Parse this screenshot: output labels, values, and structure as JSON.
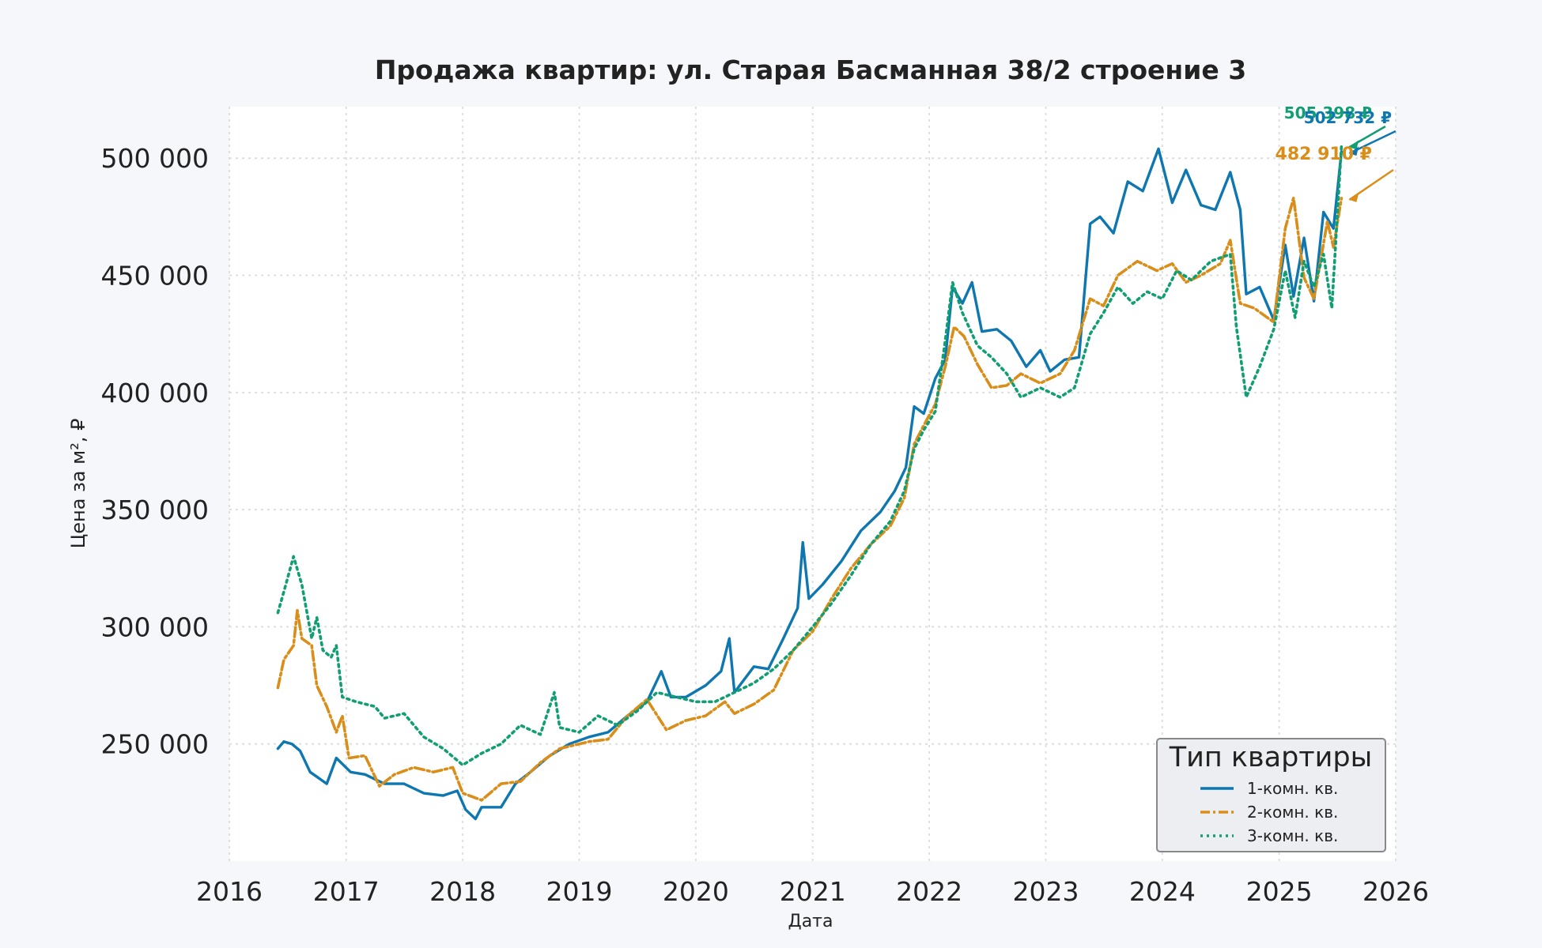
{
  "chart_data": {
    "type": "line",
    "title": "Продажа квартир: ул. Старая Басманная 38/2 строение 3",
    "xlabel": "Дата",
    "ylabel": "Цена за м², ₽",
    "xlim": [
      "2016-01-01",
      "2026-01-01"
    ],
    "ylim": [
      200000,
      522000
    ],
    "x_ticks": [
      "2016",
      "2017",
      "2018",
      "2019",
      "2020",
      "2021",
      "2022",
      "2023",
      "2024",
      "2025",
      "2026"
    ],
    "y_ticks": [
      250000,
      300000,
      350000,
      400000,
      450000,
      500000
    ],
    "y_tick_labels": [
      "250 000",
      "300 000",
      "350 000",
      "400 000",
      "450 000",
      "500 000"
    ],
    "grid": true,
    "legend": {
      "title": "Тип квартиры",
      "placement": "lower-right"
    },
    "series": [
      {
        "name": "1-комн. кв.",
        "color": "#0f77b0",
        "style": "solid",
        "points": [
          [
            "2016-06-01",
            248000
          ],
          [
            "2016-06-20",
            251000
          ],
          [
            "2016-07-15",
            250000
          ],
          [
            "2016-08-10",
            247000
          ],
          [
            "2016-09-10",
            238000
          ],
          [
            "2016-10-01",
            236000
          ],
          [
            "2016-11-01",
            233000
          ],
          [
            "2016-12-01",
            244000
          ],
          [
            "2017-01-15",
            238000
          ],
          [
            "2017-03-01",
            237000
          ],
          [
            "2017-05-01",
            233000
          ],
          [
            "2017-07-01",
            233000
          ],
          [
            "2017-09-01",
            229000
          ],
          [
            "2017-11-01",
            228000
          ],
          [
            "2017-12-15",
            230000
          ],
          [
            "2018-01-10",
            222000
          ],
          [
            "2018-02-10",
            218000
          ],
          [
            "2018-03-01",
            223000
          ],
          [
            "2018-05-01",
            223000
          ],
          [
            "2018-06-15",
            233000
          ],
          [
            "2018-08-01",
            238000
          ],
          [
            "2018-10-01",
            245000
          ],
          [
            "2018-12-01",
            250000
          ],
          [
            "2019-02-01",
            253000
          ],
          [
            "2019-04-01",
            255000
          ],
          [
            "2019-06-01",
            262000
          ],
          [
            "2019-08-01",
            268000
          ],
          [
            "2019-09-15",
            281000
          ],
          [
            "2019-10-15",
            270000
          ],
          [
            "2019-12-01",
            270000
          ],
          [
            "2020-02-01",
            275000
          ],
          [
            "2020-03-20",
            281000
          ],
          [
            "2020-04-15",
            295000
          ],
          [
            "2020-05-01",
            272000
          ],
          [
            "2020-07-01",
            283000
          ],
          [
            "2020-08-15",
            282000
          ],
          [
            "2020-10-01",
            295000
          ],
          [
            "2020-11-15",
            308000
          ],
          [
            "2020-12-01",
            336000
          ],
          [
            "2020-12-20",
            312000
          ],
          [
            "2021-02-01",
            318000
          ],
          [
            "2021-04-01",
            328000
          ],
          [
            "2021-06-01",
            341000
          ],
          [
            "2021-08-01",
            349000
          ],
          [
            "2021-09-15",
            358000
          ],
          [
            "2021-10-20",
            368000
          ],
          [
            "2021-11-15",
            394000
          ],
          [
            "2021-12-15",
            391000
          ],
          [
            "2022-01-20",
            406000
          ],
          [
            "2022-02-20",
            414000
          ],
          [
            "2022-03-15",
            445000
          ],
          [
            "2022-04-15",
            438000
          ],
          [
            "2022-05-15",
            447000
          ],
          [
            "2022-06-15",
            426000
          ],
          [
            "2022-08-01",
            427000
          ],
          [
            "2022-09-15",
            422000
          ],
          [
            "2022-11-01",
            411000
          ],
          [
            "2022-12-15",
            418000
          ],
          [
            "2023-01-15",
            409000
          ],
          [
            "2023-03-01",
            414000
          ],
          [
            "2023-04-15",
            415000
          ],
          [
            "2023-05-20",
            472000
          ],
          [
            "2023-06-20",
            475000
          ],
          [
            "2023-08-01",
            468000
          ],
          [
            "2023-09-15",
            490000
          ],
          [
            "2023-11-01",
            486000
          ],
          [
            "2023-12-20",
            504000
          ],
          [
            "2024-02-01",
            481000
          ],
          [
            "2024-03-15",
            495000
          ],
          [
            "2024-05-01",
            480000
          ],
          [
            "2024-06-15",
            478000
          ],
          [
            "2024-08-01",
            494000
          ],
          [
            "2024-09-01",
            478000
          ],
          [
            "2024-09-20",
            442000
          ],
          [
            "2024-11-01",
            445000
          ],
          [
            "2024-12-15",
            431000
          ],
          [
            "2025-01-20",
            463000
          ],
          [
            "2025-02-15",
            441000
          ],
          [
            "2025-03-20",
            466000
          ],
          [
            "2025-04-20",
            439000
          ],
          [
            "2025-05-20",
            477000
          ],
          [
            "2025-06-20",
            470000
          ],
          [
            "2025-07-15",
            502732
          ]
        ]
      },
      {
        "name": "2-комн. кв.",
        "color": "#d98e1a",
        "style": "dashdot",
        "points": [
          [
            "2016-06-01",
            274000
          ],
          [
            "2016-06-20",
            286000
          ],
          [
            "2016-07-20",
            292000
          ],
          [
            "2016-08-01",
            307000
          ],
          [
            "2016-08-15",
            295000
          ],
          [
            "2016-09-15",
            292000
          ],
          [
            "2016-10-01",
            275000
          ],
          [
            "2016-11-01",
            266000
          ],
          [
            "2016-12-01",
            255000
          ],
          [
            "2016-12-20",
            262000
          ],
          [
            "2017-01-10",
            244000
          ],
          [
            "2017-03-01",
            245000
          ],
          [
            "2017-04-15",
            232000
          ],
          [
            "2017-06-01",
            237000
          ],
          [
            "2017-08-01",
            240000
          ],
          [
            "2017-10-01",
            238000
          ],
          [
            "2017-12-01",
            240000
          ],
          [
            "2018-01-01",
            229000
          ],
          [
            "2018-03-01",
            226000
          ],
          [
            "2018-05-01",
            233000
          ],
          [
            "2018-07-01",
            234000
          ],
          [
            "2018-09-01",
            242000
          ],
          [
            "2018-11-01",
            248000
          ],
          [
            "2019-02-01",
            251000
          ],
          [
            "2019-04-01",
            252000
          ],
          [
            "2019-06-01",
            262000
          ],
          [
            "2019-08-01",
            269000
          ],
          [
            "2019-10-01",
            256000
          ],
          [
            "2019-12-01",
            260000
          ],
          [
            "2020-02-01",
            262000
          ],
          [
            "2020-04-01",
            268000
          ],
          [
            "2020-05-01",
            263000
          ],
          [
            "2020-07-01",
            267000
          ],
          [
            "2020-09-01",
            273000
          ],
          [
            "2020-11-01",
            290000
          ],
          [
            "2021-01-01",
            298000
          ],
          [
            "2021-03-01",
            312000
          ],
          [
            "2021-05-01",
            325000
          ],
          [
            "2021-07-01",
            335000
          ],
          [
            "2021-09-01",
            343000
          ],
          [
            "2021-10-15",
            355000
          ],
          [
            "2021-11-15",
            378000
          ],
          [
            "2021-12-15",
            386000
          ],
          [
            "2022-01-20",
            395000
          ],
          [
            "2022-02-20",
            411000
          ],
          [
            "2022-03-20",
            428000
          ],
          [
            "2022-04-20",
            424000
          ],
          [
            "2022-06-01",
            412000
          ],
          [
            "2022-07-15",
            402000
          ],
          [
            "2022-09-01",
            403000
          ],
          [
            "2022-10-15",
            408000
          ],
          [
            "2022-12-15",
            404000
          ],
          [
            "2023-02-15",
            408000
          ],
          [
            "2023-04-01",
            418000
          ],
          [
            "2023-05-20",
            440000
          ],
          [
            "2023-07-01",
            437000
          ],
          [
            "2023-08-15",
            450000
          ],
          [
            "2023-10-15",
            456000
          ],
          [
            "2023-12-15",
            452000
          ],
          [
            "2024-02-01",
            455000
          ],
          [
            "2024-03-15",
            447000
          ],
          [
            "2024-05-01",
            450000
          ],
          [
            "2024-07-01",
            455000
          ],
          [
            "2024-08-01",
            465000
          ],
          [
            "2024-09-01",
            438000
          ],
          [
            "2024-10-15",
            436000
          ],
          [
            "2024-12-15",
            430000
          ],
          [
            "2025-01-20",
            470000
          ],
          [
            "2025-02-15",
            483000
          ],
          [
            "2025-03-20",
            449000
          ],
          [
            "2025-04-20",
            440000
          ],
          [
            "2025-06-01",
            473000
          ],
          [
            "2025-06-20",
            462000
          ],
          [
            "2025-07-15",
            482910
          ]
        ]
      },
      {
        "name": "3-комн. кв.",
        "color": "#129e73",
        "style": "dotted",
        "points": [
          [
            "2016-06-01",
            306000
          ],
          [
            "2016-06-20",
            315000
          ],
          [
            "2016-07-20",
            330000
          ],
          [
            "2016-08-15",
            318000
          ],
          [
            "2016-09-15",
            295000
          ],
          [
            "2016-10-01",
            304000
          ],
          [
            "2016-10-20",
            290000
          ],
          [
            "2016-11-15",
            287000
          ],
          [
            "2016-12-01",
            292000
          ],
          [
            "2016-12-20",
            270000
          ],
          [
            "2017-02-01",
            268000
          ],
          [
            "2017-04-01",
            266000
          ],
          [
            "2017-05-01",
            261000
          ],
          [
            "2017-07-01",
            263000
          ],
          [
            "2017-09-01",
            253000
          ],
          [
            "2017-11-01",
            248000
          ],
          [
            "2018-01-01",
            241000
          ],
          [
            "2018-03-01",
            246000
          ],
          [
            "2018-05-01",
            250000
          ],
          [
            "2018-07-01",
            258000
          ],
          [
            "2018-09-01",
            254000
          ],
          [
            "2018-10-15",
            272000
          ],
          [
            "2018-11-01",
            257000
          ],
          [
            "2019-01-01",
            255000
          ],
          [
            "2019-03-01",
            262000
          ],
          [
            "2019-05-01",
            258000
          ],
          [
            "2019-07-01",
            264000
          ],
          [
            "2019-09-01",
            272000
          ],
          [
            "2019-11-01",
            270000
          ],
          [
            "2020-01-01",
            268000
          ],
          [
            "2020-03-01",
            268000
          ],
          [
            "2020-05-01",
            272000
          ],
          [
            "2020-07-01",
            276000
          ],
          [
            "2020-09-01",
            282000
          ],
          [
            "2020-11-01",
            290000
          ],
          [
            "2021-01-01",
            300000
          ],
          [
            "2021-03-01",
            310000
          ],
          [
            "2021-05-01",
            322000
          ],
          [
            "2021-07-01",
            335000
          ],
          [
            "2021-09-01",
            345000
          ],
          [
            "2021-10-15",
            358000
          ],
          [
            "2021-11-15",
            376000
          ],
          [
            "2021-12-15",
            384000
          ],
          [
            "2022-01-20",
            392000
          ],
          [
            "2022-02-20",
            422000
          ],
          [
            "2022-03-15",
            447000
          ],
          [
            "2022-04-15",
            434000
          ],
          [
            "2022-06-01",
            420000
          ],
          [
            "2022-07-15",
            415000
          ],
          [
            "2022-09-01",
            408000
          ],
          [
            "2022-10-15",
            398000
          ],
          [
            "2022-12-15",
            402000
          ],
          [
            "2023-02-15",
            398000
          ],
          [
            "2023-04-01",
            402000
          ],
          [
            "2023-05-20",
            425000
          ],
          [
            "2023-07-01",
            434000
          ],
          [
            "2023-08-15",
            445000
          ],
          [
            "2023-10-01",
            438000
          ],
          [
            "2023-11-15",
            443000
          ],
          [
            "2024-01-01",
            440000
          ],
          [
            "2024-02-15",
            452000
          ],
          [
            "2024-04-01",
            448000
          ],
          [
            "2024-06-01",
            456000
          ],
          [
            "2024-08-01",
            459000
          ],
          [
            "2024-08-20",
            428000
          ],
          [
            "2024-09-20",
            398000
          ],
          [
            "2024-11-01",
            411000
          ],
          [
            "2024-12-15",
            427000
          ],
          [
            "2025-01-20",
            452000
          ],
          [
            "2025-02-20",
            432000
          ],
          [
            "2025-03-20",
            456000
          ],
          [
            "2025-04-20",
            445000
          ],
          [
            "2025-05-20",
            459000
          ],
          [
            "2025-06-15",
            436000
          ],
          [
            "2025-07-15",
            505398
          ]
        ]
      }
    ],
    "annotations": [
      {
        "series": "3-комн. кв.",
        "text": "505 398 ₽",
        "color": "#129e73"
      },
      {
        "series": "1-комн. кв.",
        "text": "502 732 ₽",
        "color": "#0f77b0"
      },
      {
        "series": "2-комн. кв.",
        "text": "482 910 ₽",
        "color": "#d98e1a"
      }
    ]
  }
}
